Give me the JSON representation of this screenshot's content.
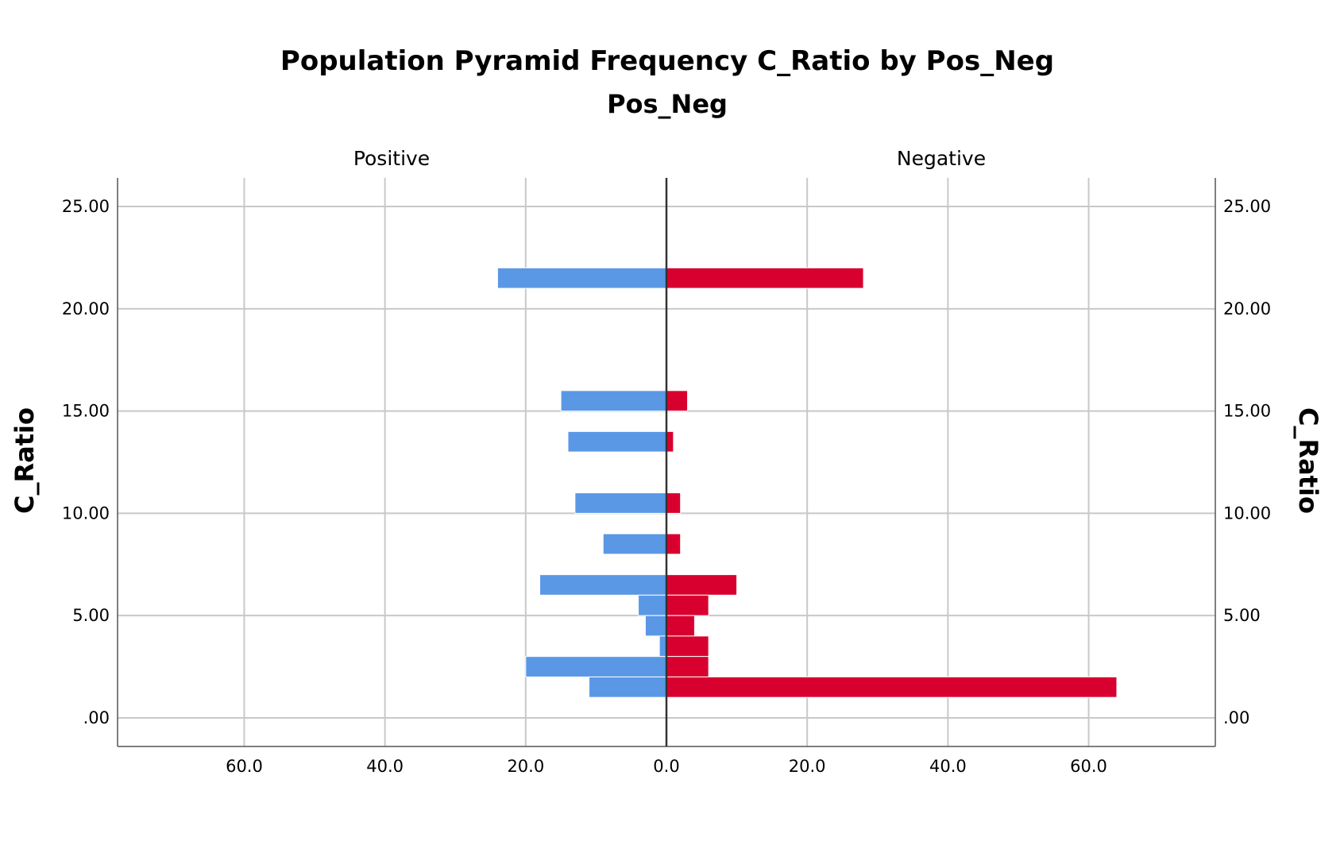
{
  "chart_data": {
    "type": "bar",
    "subtype": "population-pyramid",
    "title": "Population Pyramid Frequency C_Ratio  by Pos_Neg",
    "panel_variable": "Pos_Neg",
    "ylabel": "C_Ratio",
    "ylim": [
      -1.4,
      26.4
    ],
    "xlim": [
      -78,
      78
    ],
    "y_ticks": [
      {
        "value": 0,
        "label": ".00"
      },
      {
        "value": 5,
        "label": "5.00"
      },
      {
        "value": 10,
        "label": "10.00"
      },
      {
        "value": 15,
        "label": "15.00"
      },
      {
        "value": 20,
        "label": "20.00"
      },
      {
        "value": 25,
        "label": "25.00"
      }
    ],
    "x_ticks_left": [
      {
        "value": 60,
        "label": "60.0"
      },
      {
        "value": 40,
        "label": "40.0"
      },
      {
        "value": 20,
        "label": "20.0"
      }
    ],
    "x_ticks_right": [
      {
        "value": 0,
        "label": "0.0"
      },
      {
        "value": 20,
        "label": "20.0"
      },
      {
        "value": 40,
        "label": "40.0"
      },
      {
        "value": 60,
        "label": "60.0"
      }
    ],
    "categories": [
      21.5,
      15.5,
      13.5,
      10.5,
      8.5,
      6.5,
      5.5,
      4.5,
      3.5,
      2.5,
      1.5
    ],
    "bar_height": 1.0,
    "series": [
      {
        "name": "Positive",
        "side": "left",
        "color": "#5a98e6",
        "values": [
          24,
          15,
          14,
          13,
          9,
          18,
          4,
          3,
          1,
          20,
          11
        ]
      },
      {
        "name": "Negative",
        "side": "right",
        "color": "#d8002f",
        "values": [
          28,
          3,
          1,
          2,
          2,
          10,
          6,
          4,
          6,
          6,
          64
        ]
      }
    ],
    "grid": true
  }
}
